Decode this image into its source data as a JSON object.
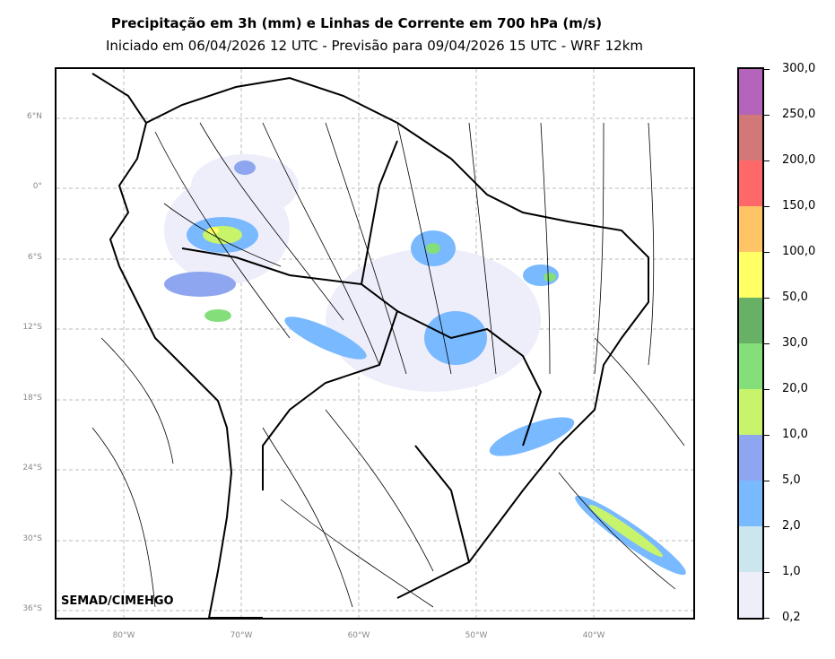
{
  "header": {
    "title": "Precipitação em 3h (mm) e Linhas de Corrente em 700 hPa (m/s)",
    "subtitle": "Iniciado em 06/04/2026 12 UTC - Previsão para 09/04/2026 15 UTC - WRF 12km"
  },
  "map": {
    "lat_labels": [
      "6°N",
      "0°",
      "6°S",
      "12°S",
      "18°S",
      "24°S",
      "30°S",
      "36°S"
    ],
    "lon_labels": [
      "80°W",
      "70°W",
      "60°W",
      "50°W",
      "40°W"
    ],
    "credit": "SEMAD/CIMEHGO"
  },
  "colorbar": {
    "labels": [
      "0,2",
      "1,0",
      "2,0",
      "5,0",
      "10,0",
      "20,0",
      "30,0",
      "50,0",
      "100,0",
      "150,0",
      "200,0",
      "250,0",
      "300,0"
    ],
    "colors": [
      "#eeeefb",
      "#cce6ee",
      "#78b9ff",
      "#8ea6ef",
      "#c8f46c",
      "#84de7a",
      "#67b066",
      "#ffff66",
      "#ffc466",
      "#ff6868",
      "#d27878",
      "#b464ba"
    ]
  }
}
